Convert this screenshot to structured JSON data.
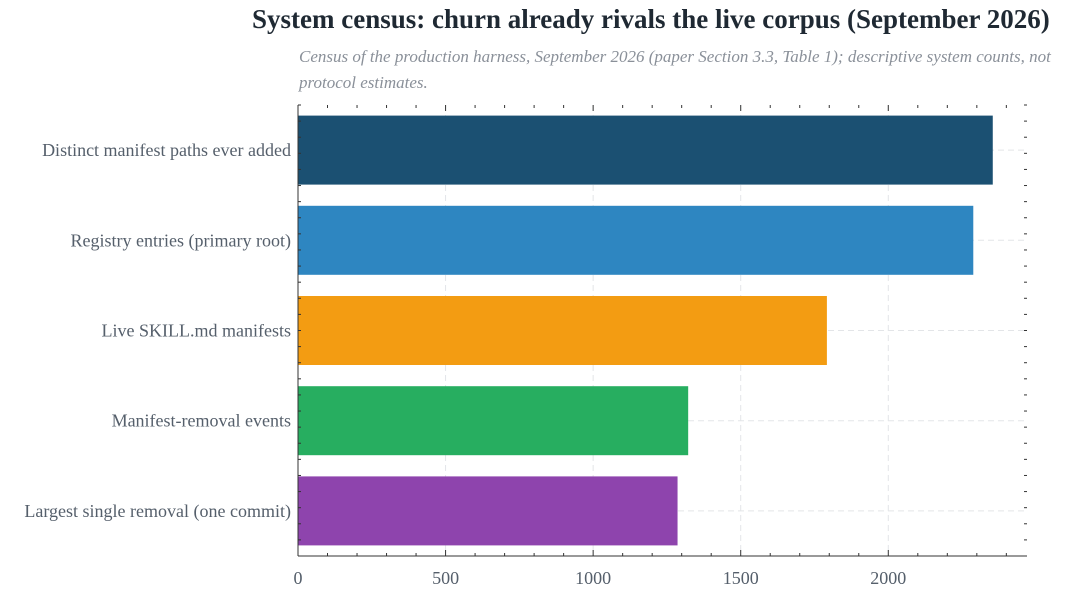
{
  "chart_data": {
    "type": "bar",
    "orientation": "horizontal",
    "title": "System census: churn already rivals the live corpus (September 2026)",
    "subtitle": "Census of the production harness, September 2026 (paper Section 3.3, Table 1); descriptive system counts, not protocol estimates.",
    "categories": [
      "Distinct manifest paths ever added",
      "Registry entries (primary root)",
      "Live SKILL.md manifests",
      "Manifest-removal events",
      "Largest single removal (one commit)"
    ],
    "values": [
      2354,
      2288,
      1792,
      1322,
      1286
    ],
    "colors": [
      "#1b5072",
      "#2e86c1",
      "#f39c12",
      "#27ae60",
      "#8e44ad"
    ],
    "xlim": [
      0,
      2470
    ],
    "xticks": [
      0,
      500,
      1000,
      1500,
      2000
    ],
    "xlabel": "",
    "ylabel": "",
    "grid": true
  }
}
